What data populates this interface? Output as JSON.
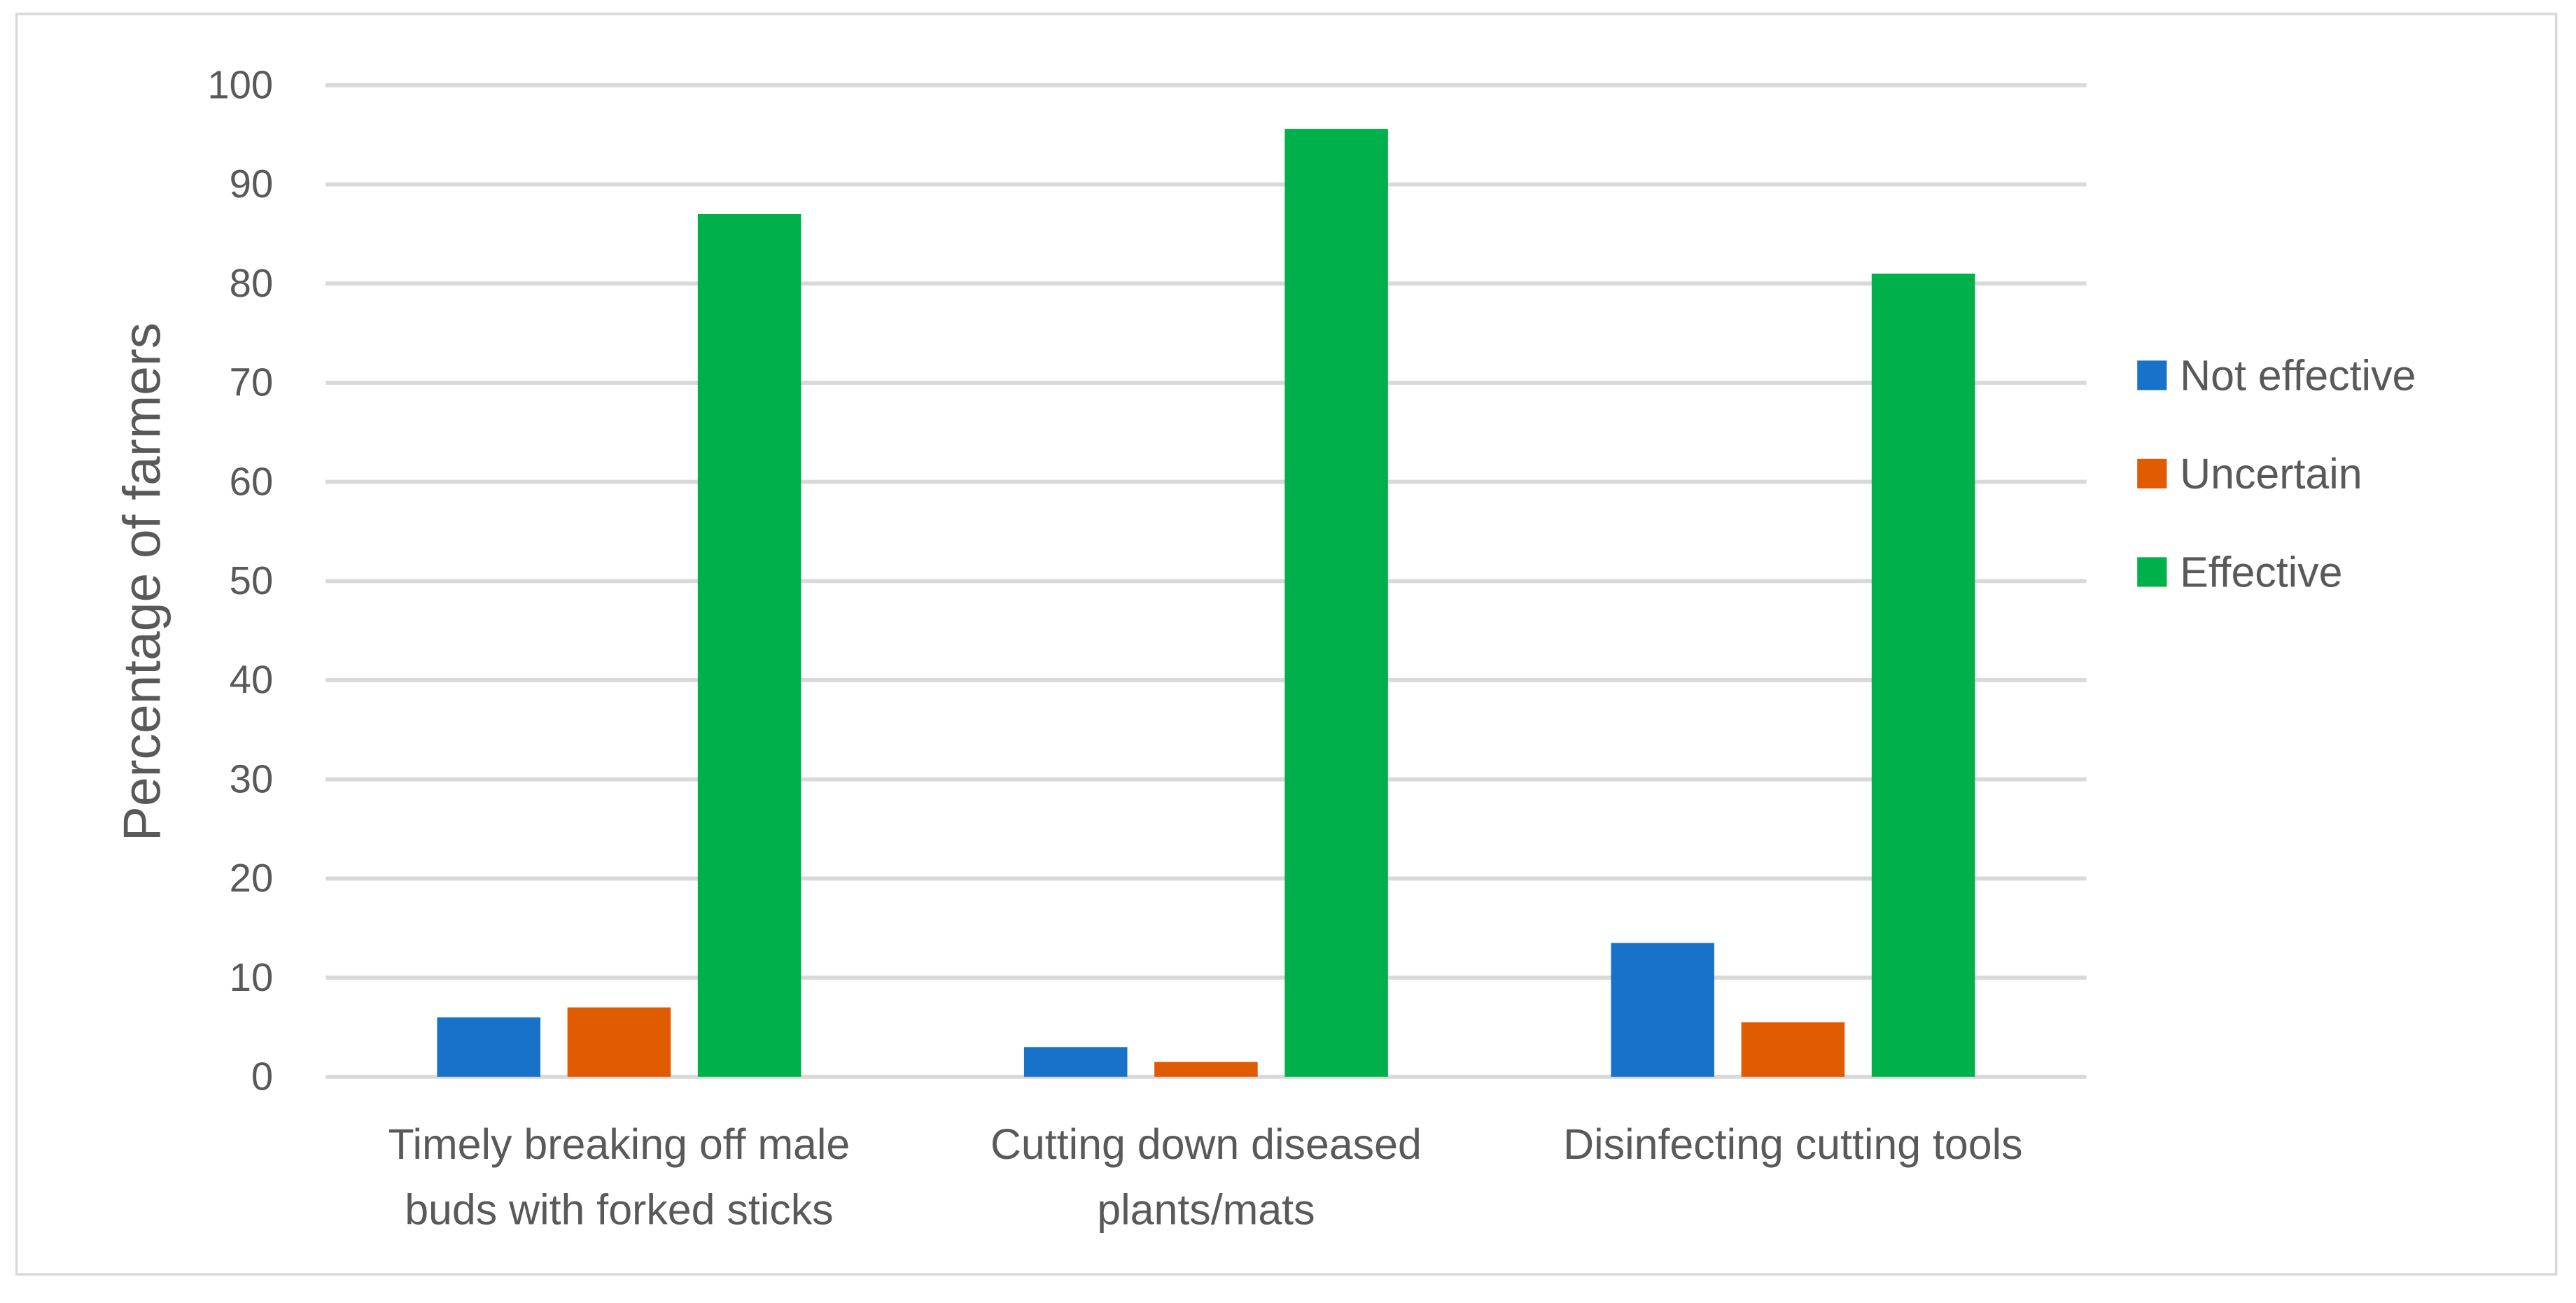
{
  "chart_data": {
    "type": "bar",
    "title": "",
    "xlabel": "",
    "ylabel": "Percentage of farmers",
    "ylim": [
      0,
      100
    ],
    "yticks": [
      0,
      10,
      20,
      30,
      40,
      50,
      60,
      70,
      80,
      90,
      100
    ],
    "grid": true,
    "legend_position": "right",
    "categories": [
      [
        "Timely breaking off male",
        "buds with forked sticks"
      ],
      [
        "Cutting down diseased",
        "plants/mats"
      ],
      [
        "Disinfecting cutting tools"
      ]
    ],
    "series": [
      {
        "name": "Not effective",
        "color": "#1872C9",
        "values": [
          6,
          3,
          13.5
        ]
      },
      {
        "name": "Uncertain",
        "color": "#E05A00",
        "values": [
          7,
          1.5,
          5.5
        ]
      },
      {
        "name": "Effective",
        "color": "#00B04A",
        "values": [
          87,
          95.6,
          81
        ]
      }
    ]
  }
}
